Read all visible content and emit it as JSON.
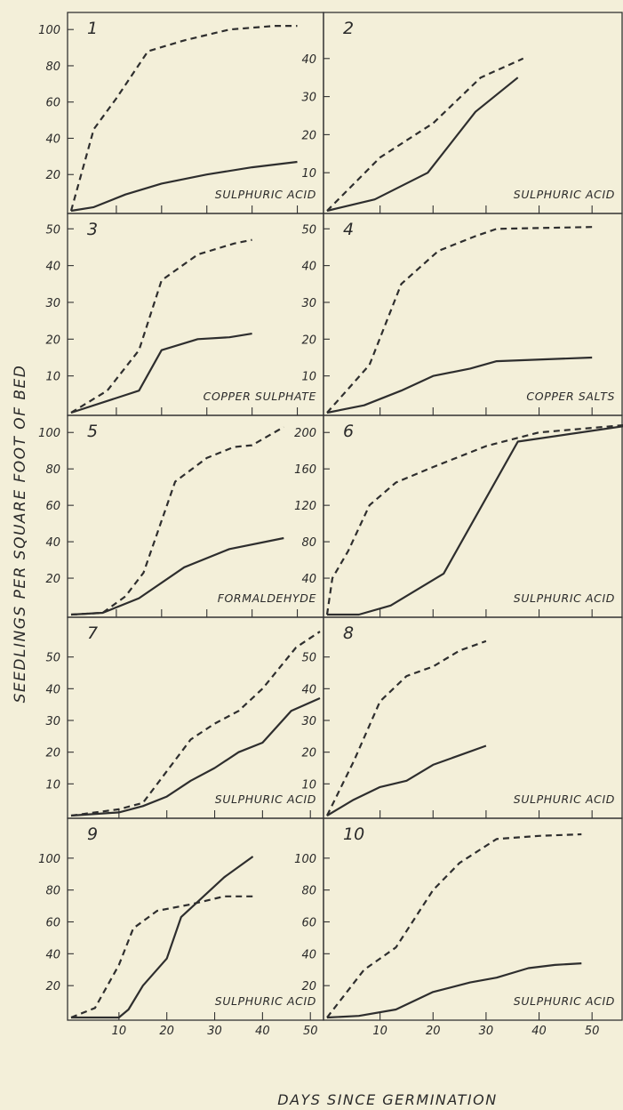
{
  "figure": {
    "ylabel": "SEEDLINGS PER SQUARE FOOT OF BED",
    "xlabel": "DAYS SINCE GERMINATION"
  },
  "chart_data": [
    {
      "type": "line",
      "panel": "1",
      "label": "SULPHURIC ACID",
      "xlim": [
        0,
        55
      ],
      "ylim": [
        0,
        105
      ],
      "yticks": [
        "20",
        "40",
        "60",
        "80",
        "100"
      ],
      "xticks": [],
      "series": [
        {
          "style": "dashed",
          "points": [
            [
              0,
              0
            ],
            [
              5,
              45
            ],
            [
              10,
              62
            ],
            [
              17,
              88
            ],
            [
              25,
              94
            ],
            [
              35,
              100
            ],
            [
              45,
              102
            ],
            [
              50,
              102
            ]
          ]
        },
        {
          "style": "solid",
          "points": [
            [
              0,
              0
            ],
            [
              5,
              2
            ],
            [
              12,
              9
            ],
            [
              20,
              15
            ],
            [
              30,
              20
            ],
            [
              40,
              24
            ],
            [
              50,
              27
            ]
          ]
        }
      ]
    },
    {
      "type": "line",
      "panel": "2",
      "label": "SULPHURIC ACID",
      "xlim": [
        0,
        55
      ],
      "ylim": [
        0,
        50
      ],
      "yticks": [
        "10",
        "20",
        "30",
        "40"
      ],
      "xticks": [],
      "series": [
        {
          "style": "dashed",
          "points": [
            [
              0,
              0
            ],
            [
              10,
              14
            ],
            [
              20,
              23
            ],
            [
              29,
              35
            ],
            [
              37,
              40
            ]
          ]
        },
        {
          "style": "solid",
          "points": [
            [
              0,
              0
            ],
            [
              9,
              3
            ],
            [
              19,
              10
            ],
            [
              28,
              26
            ],
            [
              36,
              35
            ]
          ]
        }
      ]
    },
    {
      "type": "line",
      "panel": "3",
      "label": "COPPER SULPHATE",
      "xlim": [
        0,
        55
      ],
      "ylim": [
        0,
        52
      ],
      "yticks": [
        "10",
        "20",
        "30",
        "40",
        "50"
      ],
      "xticks": [],
      "series": [
        {
          "style": "dashed",
          "points": [
            [
              0,
              0
            ],
            [
              8,
              6
            ],
            [
              15,
              17
            ],
            [
              20,
              36
            ],
            [
              28,
              43
            ],
            [
              36,
              46
            ],
            [
              40,
              47
            ]
          ]
        },
        {
          "style": "solid",
          "points": [
            [
              0,
              0
            ],
            [
              10,
              4
            ],
            [
              15,
              6
            ],
            [
              20,
              17
            ],
            [
              28,
              20
            ],
            [
              35,
              20.5
            ],
            [
              40,
              21.5
            ]
          ]
        }
      ]
    },
    {
      "type": "line",
      "panel": "4",
      "label": "COPPER SALTS",
      "xlim": [
        0,
        55
      ],
      "ylim": [
        0,
        52
      ],
      "yticks": [
        "10",
        "20",
        "30",
        "40",
        "50"
      ],
      "xticks": [],
      "series": [
        {
          "style": "dashed",
          "points": [
            [
              0,
              0
            ],
            [
              8,
              13
            ],
            [
              14,
              35
            ],
            [
              21,
              44
            ],
            [
              28,
              48
            ],
            [
              32,
              50
            ],
            [
              50,
              50.5
            ]
          ]
        },
        {
          "style": "solid",
          "points": [
            [
              0,
              0
            ],
            [
              7,
              2
            ],
            [
              14,
              6
            ],
            [
              20,
              10
            ],
            [
              27,
              12
            ],
            [
              32,
              14
            ],
            [
              50,
              15
            ]
          ]
        }
      ]
    },
    {
      "type": "line",
      "panel": "5",
      "label": "FORMALDEHYDE",
      "xlim": [
        0,
        55
      ],
      "ylim": [
        0,
        105
      ],
      "yticks": [
        "20",
        "40",
        "60",
        "80",
        "100"
      ],
      "xticks": [],
      "series": [
        {
          "style": "dashed",
          "points": [
            [
              0,
              0
            ],
            [
              7,
              1
            ],
            [
              12,
              10
            ],
            [
              16,
              23
            ],
            [
              23,
              73
            ],
            [
              30,
              86
            ],
            [
              36,
              92
            ],
            [
              40,
              93
            ],
            [
              47,
              103
            ]
          ]
        },
        {
          "style": "solid",
          "points": [
            [
              0,
              0
            ],
            [
              7,
              1
            ],
            [
              15,
              9
            ],
            [
              25,
              26
            ],
            [
              35,
              36
            ],
            [
              47,
              42
            ]
          ]
        }
      ]
    },
    {
      "type": "line",
      "panel": "6",
      "label": "SULPHURIC ACID",
      "xlim": [
        0,
        55
      ],
      "ylim": [
        0,
        210
      ],
      "yticks": [
        "40",
        "80",
        "120",
        "160",
        "200"
      ],
      "xticks": [],
      "series": [
        {
          "style": "dashed",
          "points": [
            [
              0,
              0
            ],
            [
              1,
              40
            ],
            [
              4,
              70
            ],
            [
              8,
              120
            ],
            [
              13,
              145
            ],
            [
              20,
              162
            ],
            [
              30,
              185
            ],
            [
              40,
              200
            ],
            [
              50,
              205
            ],
            [
              56,
              208
            ]
          ]
        },
        {
          "style": "solid",
          "points": [
            [
              0,
              0
            ],
            [
              6,
              0
            ],
            [
              12,
              10
            ],
            [
              22,
              45
            ],
            [
              36,
              190
            ],
            [
              56,
              207
            ]
          ]
        }
      ]
    },
    {
      "type": "line",
      "panel": "7",
      "label": "SULPHURIC ACID",
      "xlim": [
        0,
        52
      ],
      "ylim": [
        0,
        60
      ],
      "yticks": [
        "10",
        "20",
        "30",
        "40",
        "50"
      ],
      "xticks": [],
      "series": [
        {
          "style": "dashed",
          "points": [
            [
              0,
              0
            ],
            [
              10,
              2
            ],
            [
              15,
              4
            ],
            [
              20,
              14
            ],
            [
              25,
              24
            ],
            [
              30,
              29
            ],
            [
              35,
              33
            ],
            [
              40,
              40
            ],
            [
              47,
              53
            ],
            [
              52,
              58
            ]
          ]
        },
        {
          "style": "solid",
          "points": [
            [
              0,
              0
            ],
            [
              10,
              1
            ],
            [
              15,
              3
            ],
            [
              20,
              6
            ],
            [
              25,
              11
            ],
            [
              30,
              15
            ],
            [
              35,
              20
            ],
            [
              40,
              23
            ],
            [
              46,
              33
            ],
            [
              52,
              37
            ]
          ]
        }
      ]
    },
    {
      "type": "line",
      "panel": "8",
      "label": "SULPHURIC ACID",
      "xlim": [
        0,
        55
      ],
      "ylim": [
        0,
        60
      ],
      "yticks": [
        "10",
        "20",
        "30",
        "40",
        "50"
      ],
      "xticks": [],
      "series": [
        {
          "style": "dashed",
          "points": [
            [
              0,
              0
            ],
            [
              5,
              17
            ],
            [
              10,
              36
            ],
            [
              15,
              44
            ],
            [
              20,
              47
            ],
            [
              25,
              52
            ],
            [
              30,
              55
            ]
          ]
        },
        {
          "style": "solid",
          "points": [
            [
              0,
              0
            ],
            [
              5,
              5
            ],
            [
              10,
              9
            ],
            [
              15,
              11
            ],
            [
              20,
              16
            ],
            [
              25,
              19
            ],
            [
              30,
              22
            ]
          ]
        }
      ]
    },
    {
      "type": "line",
      "panel": "9",
      "label": "SULPHURIC ACID",
      "xlim": [
        0,
        52
      ],
      "ylim": [
        0,
        120
      ],
      "yticks": [
        "20",
        "40",
        "60",
        "80",
        "100"
      ],
      "xticks": [
        "10",
        "20",
        "30",
        "40",
        "50"
      ],
      "series": [
        {
          "style": "dashed",
          "points": [
            [
              0,
              0
            ],
            [
              5,
              6
            ],
            [
              10,
              33
            ],
            [
              13,
              56
            ],
            [
              18,
              67
            ],
            [
              25,
              71
            ],
            [
              32,
              76
            ],
            [
              38,
              76
            ]
          ]
        },
        {
          "style": "solid",
          "points": [
            [
              0,
              0
            ],
            [
              10,
              0
            ],
            [
              12,
              5
            ],
            [
              15,
              20
            ],
            [
              20,
              37
            ],
            [
              23,
              63
            ],
            [
              32,
              88
            ],
            [
              38,
              101
            ]
          ]
        }
      ]
    },
    {
      "type": "line",
      "panel": "10",
      "label": "SULPHURIC ACID",
      "xlim": [
        0,
        55
      ],
      "ylim": [
        0,
        120
      ],
      "yticks": [
        "20",
        "40",
        "60",
        "80",
        "100"
      ],
      "xticks": [
        "10",
        "20",
        "30",
        "40",
        "50"
      ],
      "series": [
        {
          "style": "dashed",
          "points": [
            [
              0,
              0
            ],
            [
              7,
              30
            ],
            [
              13,
              44
            ],
            [
              20,
              80
            ],
            [
              25,
              97
            ],
            [
              32,
              112
            ],
            [
              40,
              114
            ],
            [
              48,
              115
            ]
          ]
        },
        {
          "style": "solid",
          "points": [
            [
              0,
              0
            ],
            [
              6,
              1
            ],
            [
              13,
              5
            ],
            [
              20,
              16
            ],
            [
              27,
              22
            ],
            [
              32,
              25
            ],
            [
              38,
              31
            ],
            [
              43,
              33
            ],
            [
              48,
              34
            ]
          ]
        }
      ]
    }
  ]
}
